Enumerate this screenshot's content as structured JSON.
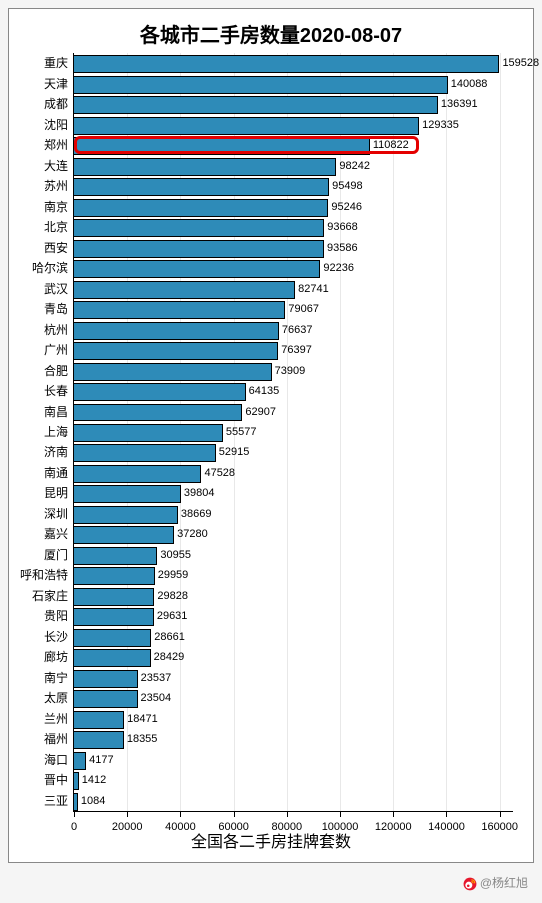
{
  "chart": {
    "type": "bar-horizontal",
    "title": "各城市二手房数量2020-08-07",
    "title_fontsize": 20,
    "xlabel": "全国各二手房挂牌套数",
    "xlabel_fontsize": 16,
    "xlim": [
      0,
      165000
    ],
    "xtick_step": 20000,
    "xticks": [
      0,
      20000,
      40000,
      60000,
      80000,
      100000,
      120000,
      140000,
      160000
    ],
    "background_color": "#ffffff",
    "grid_color": "#e8e8e8",
    "bar_color": "#2e8bb8",
    "bar_edge_color": "#000000",
    "label_fontsize": 12,
    "value_fontsize": 11,
    "bar_height_ratio": 0.78,
    "highlight": {
      "index": 4,
      "border_color": "#e40000",
      "border_width": 3
    },
    "categories": [
      "重庆",
      "天津",
      "成都",
      "沈阳",
      "郑州",
      "大连",
      "苏州",
      "南京",
      "北京",
      "西安",
      "哈尔滨",
      "武汉",
      "青岛",
      "杭州",
      "广州",
      "合肥",
      "长春",
      "南昌",
      "上海",
      "济南",
      "南通",
      "昆明",
      "深圳",
      "嘉兴",
      "厦门",
      "呼和浩特",
      "石家庄",
      "贵阳",
      "长沙",
      "廊坊",
      "南宁",
      "太原",
      "兰州",
      "福州",
      "海口",
      "晋中",
      "三亚"
    ],
    "values": [
      159528,
      140088,
      136391,
      129335,
      110822,
      98242,
      95498,
      95246,
      93668,
      93586,
      92236,
      82741,
      79067,
      76637,
      76397,
      73909,
      64135,
      62907,
      55577,
      52915,
      47528,
      39804,
      38669,
      37280,
      30955,
      29959,
      29828,
      29631,
      28661,
      28429,
      23537,
      23504,
      18471,
      18355,
      4177,
      1412,
      1084
    ]
  },
  "footer": {
    "text": "@杨红旭",
    "color": "#888888"
  }
}
